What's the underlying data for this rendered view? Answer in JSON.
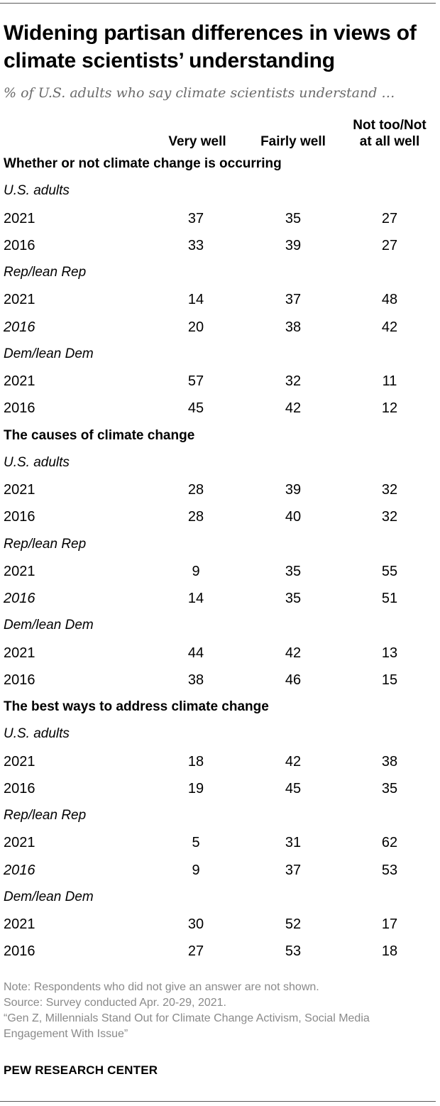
{
  "header": {
    "title": "Widening partisan differences in views of climate scientists’ understanding",
    "subtitle": "% of U.S. adults who say climate scientists understand …"
  },
  "chart_data": {
    "type": "table",
    "columns": [
      "Very well",
      "Fairly well",
      "Not too/Not at all well"
    ],
    "column_lines": [
      [
        "Very well"
      ],
      [
        "Fairly well"
      ],
      [
        "Not too/Not",
        "at all well"
      ]
    ],
    "sections": [
      {
        "label": "Whether or not climate change is occurring",
        "groups": [
          {
            "label": "U.S. adults",
            "rows": [
              {
                "year": "2021",
                "values": [
                  37,
                  35,
                  27
                ],
                "italic": false
              },
              {
                "year": "2016",
                "values": [
                  33,
                  39,
                  27
                ],
                "italic": false
              }
            ]
          },
          {
            "label": "Rep/lean Rep",
            "rows": [
              {
                "year": "2021",
                "values": [
                  14,
                  37,
                  48
                ],
                "italic": false
              },
              {
                "year": "2016",
                "values": [
                  20,
                  38,
                  42
                ],
                "italic": true
              }
            ]
          },
          {
            "label": "Dem/lean Dem",
            "rows": [
              {
                "year": "2021",
                "values": [
                  57,
                  32,
                  11
                ],
                "italic": false
              },
              {
                "year": "2016",
                "values": [
                  45,
                  42,
                  12
                ],
                "italic": false
              }
            ]
          }
        ]
      },
      {
        "label": "The causes of climate change",
        "groups": [
          {
            "label": "U.S. adults",
            "rows": [
              {
                "year": "2021",
                "values": [
                  28,
                  39,
                  32
                ],
                "italic": false
              },
              {
                "year": "2016",
                "values": [
                  28,
                  40,
                  32
                ],
                "italic": false
              }
            ]
          },
          {
            "label": "Rep/lean Rep",
            "rows": [
              {
                "year": "2021",
                "values": [
                  9,
                  35,
                  55
                ],
                "italic": false
              },
              {
                "year": "2016",
                "values": [
                  14,
                  35,
                  51
                ],
                "italic": true
              }
            ]
          },
          {
            "label": "Dem/lean Dem",
            "rows": [
              {
                "year": "2021",
                "values": [
                  44,
                  42,
                  13
                ],
                "italic": false
              },
              {
                "year": "2016",
                "values": [
                  38,
                  46,
                  15
                ],
                "italic": false
              }
            ]
          }
        ]
      },
      {
        "label": "The best ways to address climate change",
        "groups": [
          {
            "label": "U.S. adults",
            "rows": [
              {
                "year": "2021",
                "values": [
                  18,
                  42,
                  38
                ],
                "italic": false
              },
              {
                "year": "2016",
                "values": [
                  19,
                  45,
                  35
                ],
                "italic": false
              }
            ]
          },
          {
            "label": "Rep/lean Rep",
            "rows": [
              {
                "year": "2021",
                "values": [
                  5,
                  31,
                  62
                ],
                "italic": false
              },
              {
                "year": "2016",
                "values": [
                  9,
                  37,
                  53
                ],
                "italic": true
              }
            ]
          },
          {
            "label": "Dem/lean Dem",
            "rows": [
              {
                "year": "2021",
                "values": [
                  30,
                  52,
                  17
                ],
                "italic": false
              },
              {
                "year": "2016",
                "values": [
                  27,
                  53,
                  18
                ],
                "italic": false
              }
            ]
          }
        ]
      }
    ]
  },
  "footer": {
    "note": "Note: Respondents who did not give an answer are not shown.",
    "source": "Source: Survey conducted Apr. 20-29, 2021.",
    "report": "“Gen Z, Millennials Stand Out for Climate Change Activism, Social Media Engagement With Issue”",
    "brand": "PEW RESEARCH CENTER"
  }
}
